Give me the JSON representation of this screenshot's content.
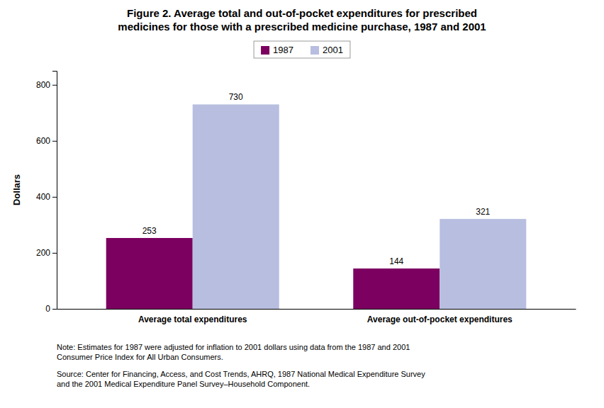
{
  "chart_data": {
    "type": "bar",
    "title": "Figure 2. Average total and out-of-pocket expenditures for prescribed",
    "subtitle": "medicines for those with a prescribed medicine purchase, 1987 and 2001",
    "categories": [
      "Average total expenditures",
      "Average out-of-pocket expenditures"
    ],
    "series": [
      {
        "name": "1987",
        "color": "#7B0060",
        "values": [
          253,
          144
        ]
      },
      {
        "name": "2001",
        "color": "#B8BEE0",
        "values": [
          730,
          321
        ]
      }
    ],
    "ylabel": "Dollars",
    "ylim": [
      0,
      850
    ],
    "yticks": [
      0,
      200,
      400,
      600,
      800
    ],
    "grid": false,
    "legend": "top",
    "data_labels": true,
    "annotations": [
      "Note:  Estimates for 1987 were adjusted for inflation to 2001 dollars using data from the 1987 and 2001\nConsumer Price Index for All Urban Consumers.",
      "Source:  Center for Financing, Access, and Cost Trends, AHRQ, 1987 National Medical Expenditure Survey\nand the 2001 Medical Expenditure Panel Survey–Household Component."
    ]
  }
}
